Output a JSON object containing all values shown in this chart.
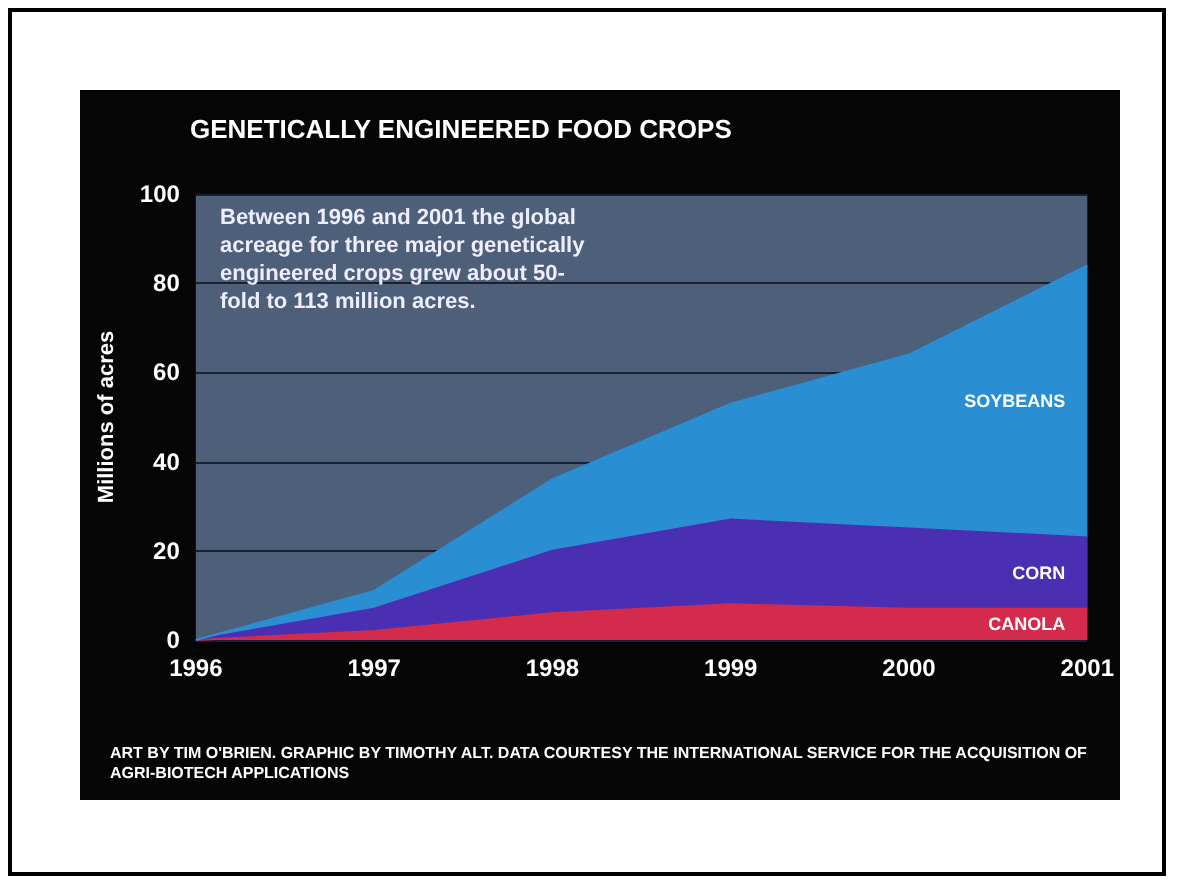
{
  "chart_data": {
    "type": "area",
    "stacked": true,
    "title": "GENETICALLY ENGINEERED FOOD CROPS",
    "ylabel": "Millions of acres",
    "categories": [
      "1996",
      "1997",
      "1998",
      "1999",
      "2000",
      "2001"
    ],
    "series": [
      {
        "name": "CANOLA",
        "color": "#d42a4c",
        "values": [
          0,
          2,
          6,
          8,
          7,
          7
        ]
      },
      {
        "name": "CORN",
        "color": "#4b2fb2",
        "values": [
          0,
          5,
          14,
          19,
          18,
          16
        ]
      },
      {
        "name": "SOYBEANS",
        "color": "#2a8fd2",
        "values": [
          0,
          4,
          16,
          26,
          39,
          61
        ]
      }
    ],
    "ylim": [
      0,
      100
    ],
    "yticks": [
      0,
      20,
      40,
      60,
      80,
      100
    ],
    "grid": "y",
    "legend": false,
    "annotations": [
      "Between 1996 and 2001 the global acreage for three major genetically engineered crops grew about 50-fold to 113 million acres.",
      "ART BY TIM O'BRIEN. GRAPHIC BY TIMOTHY ALT. DATA COURTESY THE INTERNATIONAL SERVICE FOR THE ACQUISITION OF AGRI-BIOTECH APPLICATIONS"
    ]
  }
}
